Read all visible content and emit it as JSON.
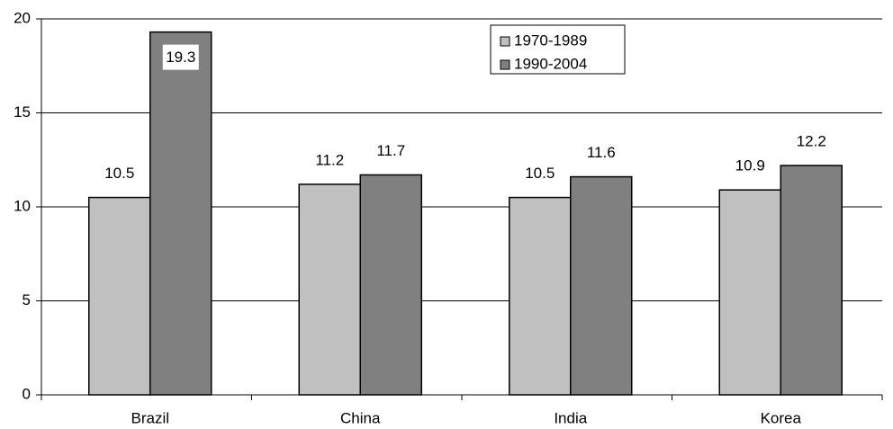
{
  "chart_data": {
    "type": "bar",
    "categories": [
      "Brazil",
      "China",
      "India",
      "Korea"
    ],
    "series": [
      {
        "name": "1970-1989",
        "color": "#c0c0c0",
        "values": [
          10.5,
          11.2,
          10.5,
          10.9
        ]
      },
      {
        "name": "1990-2004",
        "color": "#808080",
        "values": [
          19.3,
          11.7,
          11.6,
          12.2
        ]
      }
    ],
    "ylim": [
      0,
      20
    ],
    "yticks": [
      0,
      5,
      10,
      15,
      20
    ],
    "grid": true,
    "legend": "top-right"
  }
}
